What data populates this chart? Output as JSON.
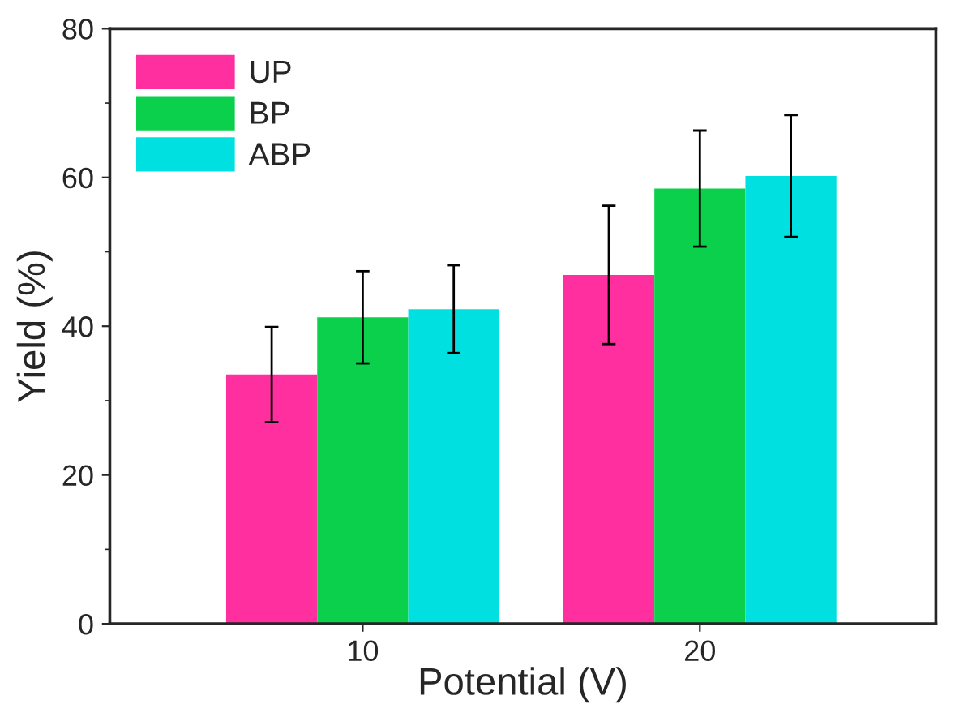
{
  "chart_data": {
    "type": "bar",
    "xlabel": "Potential (V)",
    "ylabel": "Yield (%)",
    "categories": [
      "10",
      "20"
    ],
    "series": [
      {
        "name": "UP",
        "color": "#ff2fa0",
        "values": [
          33.5,
          46.9
        ],
        "errors": [
          6.4,
          9.3
        ]
      },
      {
        "name": "BP",
        "color": "#0bd04b",
        "values": [
          41.2,
          58.5
        ],
        "errors": [
          6.2,
          7.8
        ]
      },
      {
        "name": "ABP",
        "color": "#00e0e0",
        "values": [
          42.3,
          60.2
        ],
        "errors": [
          5.9,
          8.2
        ]
      }
    ],
    "ylim": [
      0,
      80
    ],
    "yticks": [
      0,
      20,
      40,
      60,
      80
    ],
    "grid": false,
    "legend": "top left"
  }
}
